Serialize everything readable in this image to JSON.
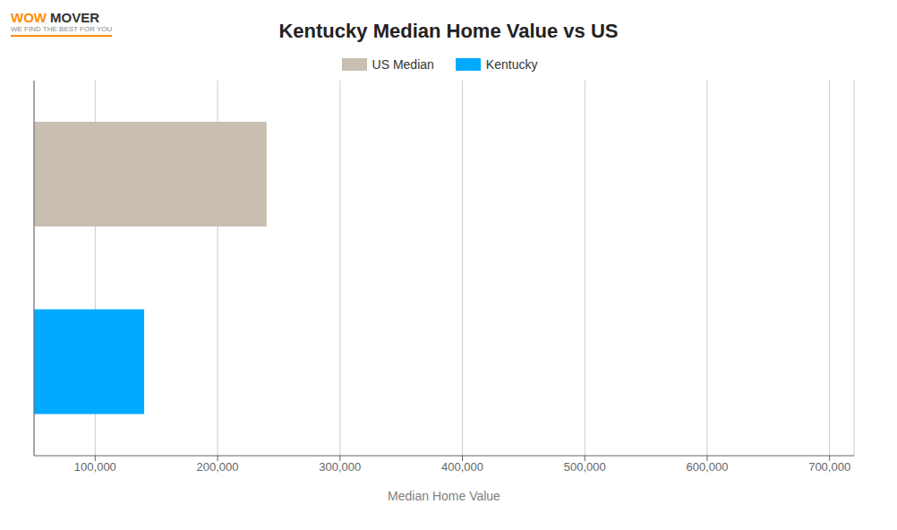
{
  "chart_data": {
    "type": "bar",
    "orientation": "horizontal",
    "title": "Kentucky Median Home Value vs US",
    "xlabel": "Median Home Value",
    "categories": [
      "US Median",
      "Kentucky"
    ],
    "values": [
      240000,
      140000
    ],
    "colors": [
      "#c8bfb2",
      "#00aaff"
    ],
    "xlim": [
      50000,
      720000
    ],
    "xticks": [
      {
        "value": 100000,
        "label": "100,000"
      },
      {
        "value": 200000,
        "label": "200,000"
      },
      {
        "value": 300000,
        "label": "300,000"
      },
      {
        "value": 400000,
        "label": "400,000"
      },
      {
        "value": 500000,
        "label": "500,000"
      },
      {
        "value": 600000,
        "label": "600,000"
      },
      {
        "value": 700000,
        "label": "700,000"
      }
    ],
    "grid": true,
    "legend": "top",
    "tick_labels": "x",
    "annotations": [
      "WOW",
      "MOVER",
      "WE FIND THE BEST FOR YOU"
    ]
  }
}
